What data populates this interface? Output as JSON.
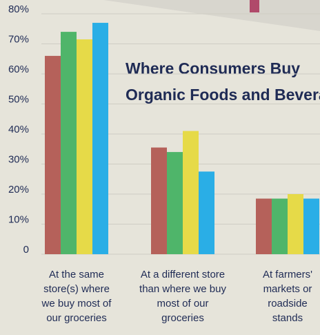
{
  "chart_data": {
    "type": "bar",
    "title": [
      "Where Consumers Buy",
      "Organic Foods and Bevera"
    ],
    "categories": [
      [
        "At the same",
        "store(s) where",
        "we buy most of",
        "our groceries"
      ],
      [
        "At a different store",
        "than where we buy",
        "most of our",
        "groceries"
      ],
      [
        "At farmers'",
        "markets or",
        "roadside",
        "stands"
      ]
    ],
    "series": [
      {
        "color": "#b5615a",
        "values": [
          66,
          35.5,
          18.5
        ]
      },
      {
        "color": "#4fb56a",
        "values": [
          74,
          34,
          18.5
        ]
      },
      {
        "color": "#e6da48",
        "values": [
          71.5,
          41,
          20
        ]
      },
      {
        "color": "#2aaee6",
        "values": [
          77,
          27.5,
          18.5
        ]
      }
    ],
    "ylim": [
      0,
      80
    ],
    "yticks": [
      0,
      {
        "value": 10,
        "label": "10%"
      },
      {
        "value": 20,
        "label": "20%"
      },
      {
        "value": 30,
        "label": "30%"
      },
      {
        "value": 40,
        "label": "40%"
      },
      {
        "value": 50,
        "label": "50%"
      },
      {
        "value": 60,
        "label": "60%"
      },
      {
        "value": 70,
        "label": "70%"
      },
      {
        "value": 80,
        "label": "80%"
      }
    ],
    "grid": true
  }
}
